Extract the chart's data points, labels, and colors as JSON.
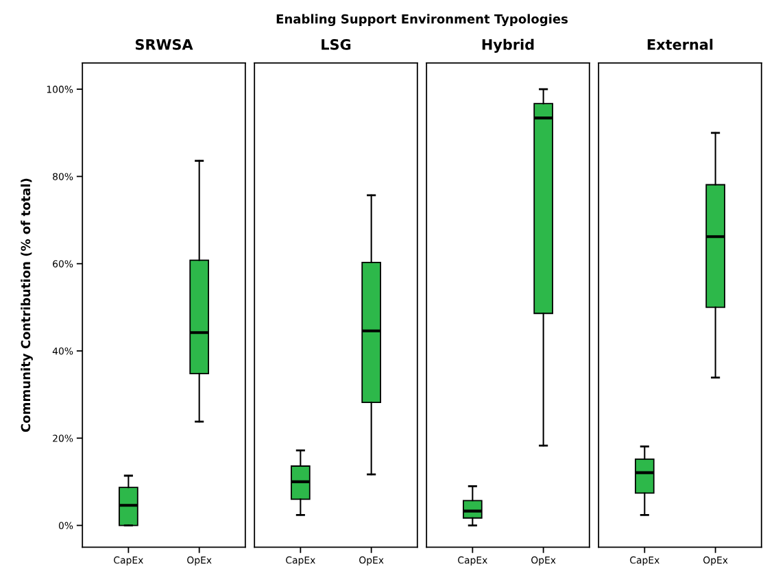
{
  "chart_data": [
    {
      "type": "box",
      "title": "SRWSA",
      "annotations": [
        "Enabling Support Environment Typologies"
      ],
      "ylabel": "Community Contribution (% of total)",
      "categories": [
        "CapEx",
        "OpEx"
      ],
      "color": "#2db84a",
      "ylim": [
        -5,
        106
      ],
      "yticks": [
        {
          "value": 0,
          "label": "0%"
        },
        {
          "value": 20,
          "label": "20%"
        },
        {
          "value": 40,
          "label": "40%"
        },
        {
          "value": 60,
          "label": "60%"
        },
        {
          "value": 80,
          "label": "80%"
        },
        {
          "value": 100,
          "label": "100%"
        }
      ],
      "grid": false,
      "boxes": [
        {
          "low": 0,
          "q1": 0,
          "median": 4.6,
          "q3": 8.7,
          "high": 11.4
        },
        {
          "low": 23.8,
          "q1": 34.8,
          "median": 44.2,
          "q3": 60.8,
          "high": 83.6
        }
      ]
    },
    {
      "type": "box",
      "title": "LSG",
      "categories": [
        "CapEx",
        "OpEx"
      ],
      "color": "#2db84a",
      "ylim": [
        -5,
        106
      ],
      "tick_labels": "x",
      "grid": false,
      "boxes": [
        {
          "low": 2.4,
          "q1": 6.0,
          "median": 10.0,
          "q3": 13.6,
          "high": 17.2
        },
        {
          "low": 11.7,
          "q1": 28.2,
          "median": 44.6,
          "q3": 60.3,
          "high": 75.7
        }
      ]
    },
    {
      "type": "box",
      "title": "Hybrid",
      "categories": [
        "CapEx",
        "OpEx"
      ],
      "color": "#2db84a",
      "ylim": [
        -5,
        106
      ],
      "tick_labels": "x",
      "grid": false,
      "boxes": [
        {
          "low": 0,
          "q1": 1.7,
          "median": 3.3,
          "q3": 5.7,
          "high": 9.0
        },
        {
          "low": 18.3,
          "q1": 48.6,
          "median": 93.4,
          "q3": 96.7,
          "high": 100
        }
      ]
    },
    {
      "type": "box",
      "title": "External",
      "categories": [
        "CapEx",
        "OpEx"
      ],
      "color": "#2db84a",
      "ylim": [
        -5,
        106
      ],
      "tick_labels": "x",
      "grid": false,
      "boxes": [
        {
          "low": 2.4,
          "q1": 7.4,
          "median": 12.1,
          "q3": 15.2,
          "high": 18.1
        },
        {
          "low": 33.9,
          "q1": 50.0,
          "median": 66.2,
          "q3": 78.1,
          "high": 90.0
        }
      ]
    }
  ]
}
